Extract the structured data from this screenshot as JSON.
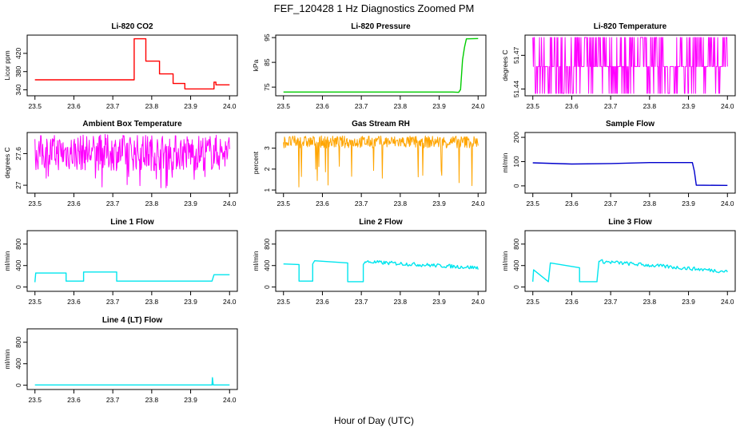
{
  "title": "FEF_120428  1 Hz Diagnostics Zoomed PM",
  "xlabel": "Hour of Day (UTC)",
  "chart_data": [
    {
      "type": "line",
      "title": "Li-820 CO2",
      "ylabel": "Licor ppm",
      "color": "#ff0000",
      "xlim": [
        23.48,
        24.02
      ],
      "xticks": [
        "23.5",
        "23.6",
        "23.7",
        "23.8",
        "23.9",
        "24.0"
      ],
      "yticks": [
        340,
        380,
        420
      ],
      "ylim": [
        327,
        460
      ],
      "series": [
        {
          "x": [
            23.5,
            23.755,
            23.755,
            23.785,
            23.785,
            23.82,
            23.82,
            23.855,
            23.855,
            23.885,
            23.885,
            23.96,
            23.96,
            23.965,
            23.965,
            24.0
          ],
          "values": [
            362,
            362,
            452,
            452,
            403,
            403,
            375,
            375,
            354,
            354,
            342,
            342,
            357,
            357,
            351,
            351
          ]
        }
      ]
    },
    {
      "type": "line",
      "title": "Li-820 Pressure",
      "ylabel": "kPa",
      "color": "#00cc00",
      "xlim": [
        23.48,
        24.02
      ],
      "xticks": [
        "23.5",
        "23.6",
        "23.7",
        "23.8",
        "23.9",
        "24.0"
      ],
      "yticks": [
        75,
        85,
        95
      ],
      "ylim": [
        71.5,
        96
      ],
      "series": [
        {
          "x": [
            23.5,
            23.935,
            23.95,
            23.955,
            23.96,
            23.965,
            23.97,
            24.0
          ],
          "values": [
            73,
            73,
            72.9,
            74,
            86,
            91,
            94.5,
            94.6
          ]
        }
      ]
    },
    {
      "type": "line",
      "title": "Li-820 Temperature",
      "ylabel": "degrees C",
      "color": "#ff00ff",
      "noisy": true,
      "xlim": [
        23.48,
        24.02
      ],
      "xticks": [
        "23.5",
        "23.6",
        "23.7",
        "23.8",
        "23.9",
        "24.0"
      ],
      "yticks": [
        51.44,
        51.47
      ],
      "ylim": [
        51.434,
        51.488
      ],
      "series": [
        {
          "x": [
            23.5,
            24.0
          ],
          "values": [
            51.46,
            51.46
          ]
        }
      ]
    },
    {
      "type": "line",
      "title": "Ambient Box Temperature",
      "ylabel": "degrees C",
      "color": "#ff00ff",
      "noisy": true,
      "xlim": [
        23.48,
        24.02
      ],
      "xticks": [
        "23.5",
        "23.6",
        "23.7",
        "23.8",
        "23.9",
        "24.0"
      ],
      "yticks": [
        27.0,
        27.6
      ],
      "ylim": [
        26.85,
        28.0
      ],
      "series": [
        {
          "x": [
            23.5,
            24.0
          ],
          "values": [
            27.62,
            27.62
          ]
        }
      ]
    },
    {
      "type": "line",
      "title": "Gas Stream RH",
      "ylabel": "percent",
      "color": "#ffa500",
      "noisy": true,
      "xlim": [
        23.48,
        24.02
      ],
      "xticks": [
        "23.5",
        "23.6",
        "23.7",
        "23.8",
        "23.9",
        "24.0"
      ],
      "yticks": [
        1.0,
        2.0,
        3.0
      ],
      "ylim": [
        0.85,
        3.75
      ],
      "series": [
        {
          "x": [
            23.5,
            24.0
          ],
          "values": [
            3.3,
            3.3
          ]
        }
      ]
    },
    {
      "type": "line",
      "title": "Sample Flow",
      "ylabel": "ml/min",
      "color": "#0000cc",
      "xlim": [
        23.48,
        24.02
      ],
      "xticks": [
        "23.5",
        "23.6",
        "23.7",
        "23.8",
        "23.9",
        "24.0"
      ],
      "yticks": [
        0,
        100,
        200
      ],
      "ylim": [
        -30,
        220
      ],
      "series": [
        {
          "x": [
            23.5,
            23.6,
            23.7,
            23.8,
            23.91,
            23.915,
            23.92,
            24.0
          ],
          "values": [
            95,
            90,
            92,
            96,
            96,
            60,
            3,
            2
          ]
        }
      ]
    },
    {
      "type": "line",
      "title": "Line 1 Flow",
      "ylabel": "ml/min",
      "color": "#00e5ee",
      "xlim": [
        23.48,
        24.02
      ],
      "xticks": [
        "23.5",
        "23.6",
        "23.7",
        "23.8",
        "23.9",
        "24.0"
      ],
      "yticks": [
        0,
        400,
        800
      ],
      "ylim": [
        -80,
        1050
      ],
      "series": [
        {
          "x": [
            23.5,
            23.502,
            23.58,
            23.58,
            23.625,
            23.625,
            23.71,
            23.71,
            23.955,
            23.96,
            24.0
          ],
          "values": [
            90,
            260,
            260,
            110,
            110,
            280,
            280,
            110,
            110,
            230,
            230
          ]
        }
      ]
    },
    {
      "type": "line",
      "title": "Line 2 Flow",
      "ylabel": "ml/min",
      "color": "#00e5ee",
      "xlim": [
        23.48,
        24.02
      ],
      "xticks": [
        "23.5",
        "23.6",
        "23.7",
        "23.8",
        "23.9",
        "24.0"
      ],
      "yticks": [
        0,
        400,
        800
      ],
      "ylim": [
        -80,
        1050
      ],
      "series": [
        {
          "x": [
            23.5,
            23.54,
            23.54,
            23.575,
            23.575,
            23.58,
            23.665,
            23.665,
            23.705,
            23.705,
            23.71,
            23.95,
            24.0
          ],
          "values": [
            430,
            420,
            110,
            110,
            430,
            490,
            450,
            100,
            100,
            420,
            470,
            420,
            360
          ]
        }
      ]
    },
    {
      "type": "line",
      "title": "Line 3 Flow",
      "ylabel": "ml/min",
      "color": "#00e5ee",
      "xlim": [
        23.48,
        24.02
      ],
      "xticks": [
        "23.5",
        "23.6",
        "23.7",
        "23.8",
        "23.9",
        "24.0"
      ],
      "yticks": [
        0,
        400,
        800
      ],
      "ylim": [
        -80,
        1050
      ],
      "series": [
        {
          "x": [
            23.5,
            23.502,
            23.54,
            23.54,
            23.545,
            23.62,
            23.62,
            23.665,
            23.665,
            23.67,
            23.95,
            24.0
          ],
          "values": [
            100,
            320,
            100,
            100,
            450,
            360,
            100,
            100,
            120,
            480,
            300,
            290
          ]
        }
      ]
    },
    {
      "type": "line",
      "title": "Line 4 (LT) Flow",
      "ylabel": "ml/min",
      "color": "#00e5ee",
      "xlim": [
        23.48,
        24.02
      ],
      "xticks": [
        "23.5",
        "23.6",
        "23.7",
        "23.8",
        "23.9",
        "24.0"
      ],
      "yticks": [
        0,
        400,
        800
      ],
      "ylim": [
        -80,
        1050
      ],
      "series": [
        {
          "x": [
            23.5,
            23.955,
            23.956,
            23.958,
            23.96,
            24.0
          ],
          "values": [
            5,
            5,
            140,
            5,
            5,
            5
          ]
        }
      ]
    }
  ]
}
